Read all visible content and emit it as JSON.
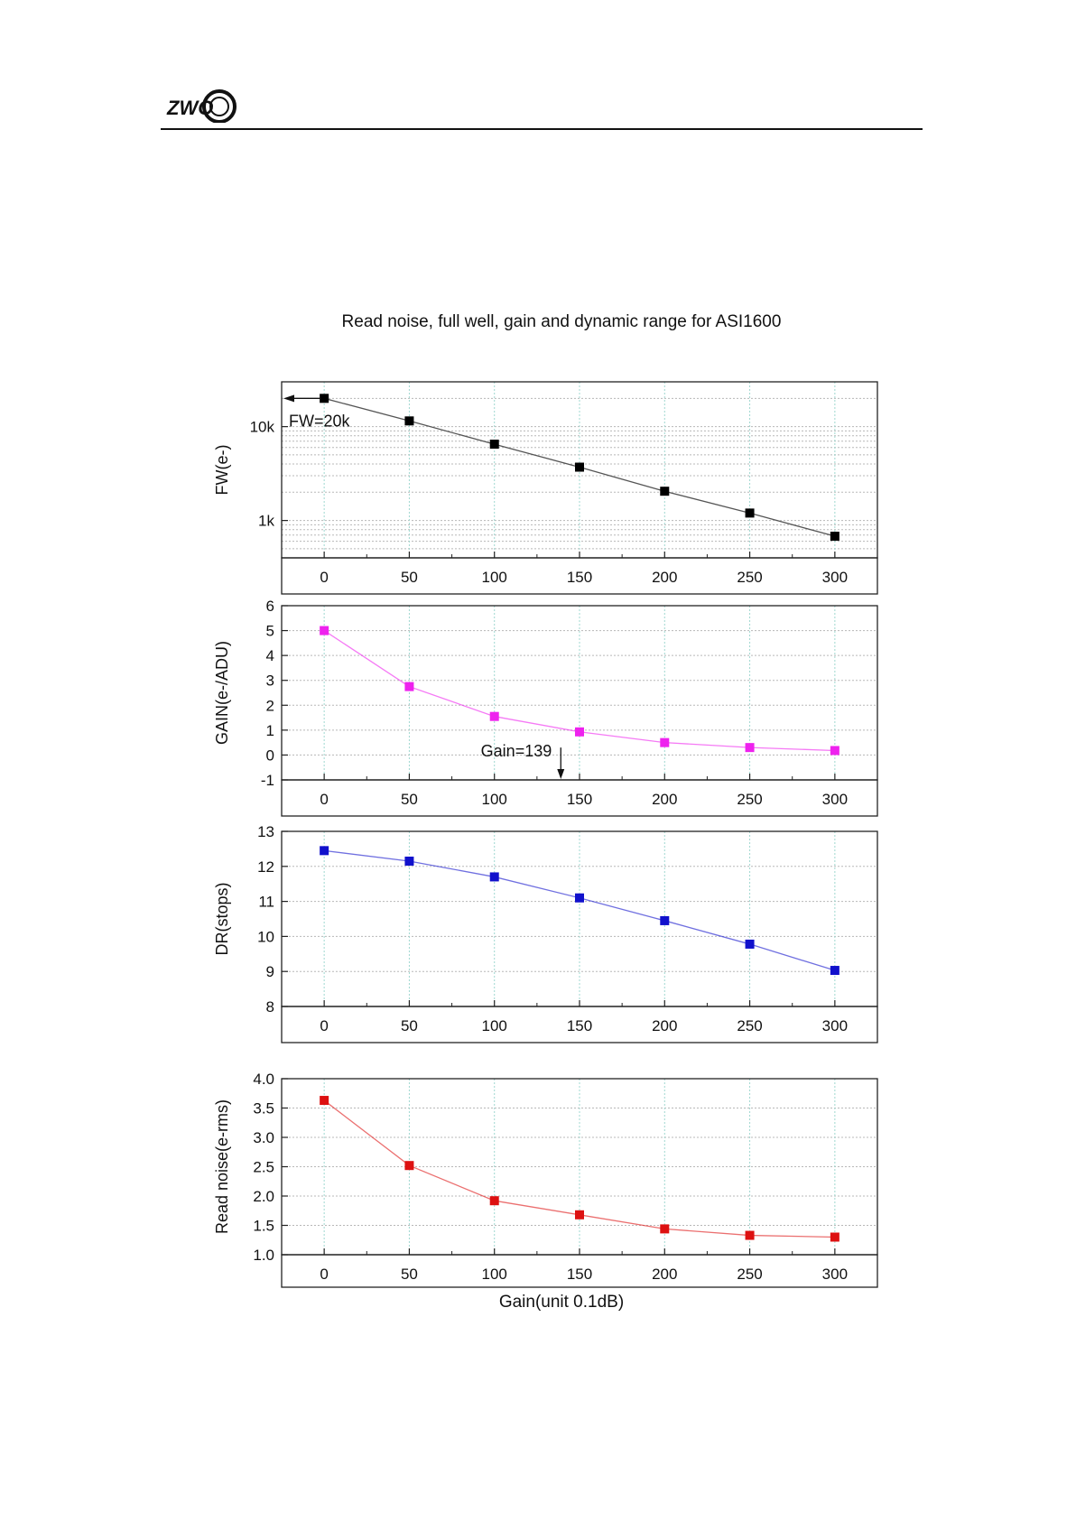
{
  "page": {
    "logo_text": "ZWO"
  },
  "figure": {
    "title": "Read noise, full well, gain and dynamic range for ASI1600",
    "shared_xlabel": "Gain(unit 0.1dB)"
  },
  "chart_data": [
    {
      "type": "line",
      "ylabel": "FW(e-)",
      "yscale": "log",
      "ylim": [
        400,
        30000
      ],
      "xlim": [
        -25,
        325
      ],
      "x": [
        0,
        50,
        100,
        150,
        200,
        250,
        300
      ],
      "x_ticks": [
        0,
        50,
        100,
        150,
        200,
        250,
        300
      ],
      "y_ticks": [
        1000,
        10000
      ],
      "y_tick_labels": [
        "1k",
        "10k"
      ],
      "grid": true,
      "series": [
        {
          "values": [
            20000,
            11500,
            6500,
            3700,
            2050,
            1200,
            680
          ],
          "color": "#000000"
        }
      ],
      "annotation": {
        "text": "FW=20k",
        "arrow": "left",
        "at_value": 20000
      }
    },
    {
      "type": "line",
      "ylabel": "GAIN(e-/ADU)",
      "ylim": [
        -1,
        6
      ],
      "xlim": [
        -25,
        325
      ],
      "x": [
        0,
        50,
        100,
        150,
        200,
        250,
        300
      ],
      "x_ticks": [
        0,
        50,
        100,
        150,
        200,
        250,
        300
      ],
      "y_ticks": [
        -1,
        0,
        1,
        2,
        3,
        4,
        5,
        6
      ],
      "grid": true,
      "series": [
        {
          "values": [
            5.0,
            2.75,
            1.55,
            0.93,
            0.5,
            0.3,
            0.18
          ],
          "color": "#ee22ee"
        }
      ],
      "annotation": {
        "text": "Gain=139",
        "arrow": "down",
        "at_x": 139
      }
    },
    {
      "type": "line",
      "ylabel": "DR(stops)",
      "ylim": [
        8,
        13
      ],
      "xlim": [
        -25,
        325
      ],
      "x": [
        0,
        50,
        100,
        150,
        200,
        250,
        300
      ],
      "x_ticks": [
        0,
        50,
        100,
        150,
        200,
        250,
        300
      ],
      "y_ticks": [
        8,
        9,
        10,
        11,
        12,
        13
      ],
      "grid": true,
      "series": [
        {
          "values": [
            12.45,
            12.15,
            11.7,
            11.1,
            10.45,
            9.78,
            9.03
          ],
          "color": "#1111cc"
        }
      ]
    },
    {
      "type": "line",
      "ylabel": "Read noise(e-rms)",
      "xlabel": "Gain(unit 0.1dB)",
      "ylim": [
        1.0,
        4.0
      ],
      "xlim": [
        -25,
        325
      ],
      "x": [
        0,
        50,
        100,
        150,
        200,
        250,
        300
      ],
      "x_ticks": [
        0,
        50,
        100,
        150,
        200,
        250,
        300
      ],
      "y_ticks": [
        1.0,
        1.5,
        2.0,
        2.5,
        3.0,
        3.5,
        4.0
      ],
      "y_tick_labels": [
        "1.0",
        "1.5",
        "2.0",
        "2.5",
        "3.0",
        "3.5",
        "4.0"
      ],
      "grid": true,
      "series": [
        {
          "values": [
            3.63,
            2.52,
            1.92,
            1.68,
            1.44,
            1.33,
            1.3
          ],
          "color": "#dd1111"
        }
      ]
    }
  ]
}
